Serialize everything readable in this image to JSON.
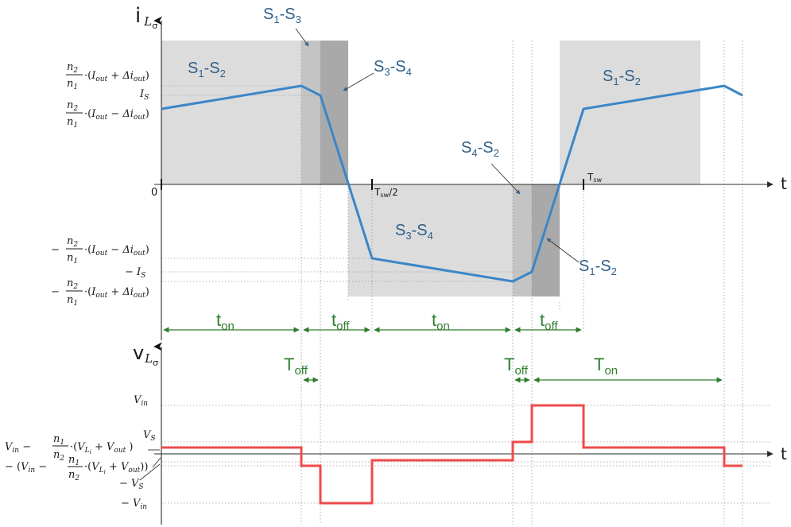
{
  "axes": {
    "top_y_label": "i",
    "top_y_label_sub": "L",
    "top_y_label_subsub": "σ",
    "bottom_y_label": "v",
    "bottom_y_label_sub": "L",
    "bottom_y_label_subsub": "σ",
    "t_label_top": "t",
    "t_label_bottom": "t",
    "zero_label": "0",
    "tsw_half_label": "T",
    "tsw_half_sub": "sw",
    "tsw_half_suffix": "/2",
    "tsw_label": "T",
    "tsw_sub": "sw"
  },
  "switch_labels": {
    "s1s2_left": {
      "a": "S",
      "a_sub": "1",
      "sep": "-",
      "b": "S",
      "b_sub": "2"
    },
    "s1s3": {
      "a": "S",
      "a_sub": "1",
      "sep": "-",
      "b": "S",
      "b_sub": "3"
    },
    "s3s4_upper": {
      "a": "S",
      "a_sub": "3",
      "sep": "-",
      "b": "S",
      "b_sub": "4"
    },
    "s3s4_lower": {
      "a": "S",
      "a_sub": "3",
      "sep": "-",
      "b": "S",
      "b_sub": "4"
    },
    "s4s2": {
      "a": "S",
      "a_sub": "4",
      "sep": "-",
      "b": "S",
      "b_sub": "2"
    },
    "s1s2_lower": {
      "a": "S",
      "a_sub": "1",
      "sep": "-",
      "b": "S",
      "b_sub": "2"
    },
    "s1s2_right": {
      "a": "S",
      "a_sub": "1",
      "sep": "-",
      "b": "S",
      "b_sub": "2"
    }
  },
  "current_levels": {
    "upper_plus": {
      "num": "n",
      "num_sub": "2",
      "den": "n",
      "den_sub": "1",
      "dot": "·(",
      "i": "I",
      "i_sub": "out",
      "op": " + ",
      "d": "Δi",
      "d_sub": "out",
      "close": ")"
    },
    "is_pos": {
      "main": "I",
      "sub": "S"
    },
    "upper_minus": {
      "num": "n",
      "num_sub": "2",
      "den": "n",
      "den_sub": "1",
      "dot": "·(",
      "i": "I",
      "i_sub": "out",
      "op": " − ",
      "d": "Δi",
      "d_sub": "out",
      "close": ")"
    },
    "lower_minus": {
      "prefix": "−",
      "num": "n",
      "num_sub": "2",
      "den": "n",
      "den_sub": "1",
      "dot": "·(",
      "i": "I",
      "i_sub": "out",
      "op": " − ",
      "d": "Δi",
      "d_sub": "out",
      "close": ")"
    },
    "is_neg": {
      "prefix": "− ",
      "main": "I",
      "sub": "S"
    },
    "lower_plus": {
      "prefix": "−",
      "num": "n",
      "num_sub": "2",
      "den": "n",
      "den_sub": "1",
      "dot": "·(",
      "i": "I",
      "i_sub": "out",
      "op": " + ",
      "d": "Δi",
      "d_sub": "out",
      "close": ")"
    }
  },
  "voltage_levels": {
    "vin": {
      "main": "V",
      "sub": "in"
    },
    "vs": {
      "main": "V",
      "sub": "S"
    },
    "mid_pos": {
      "a": "V",
      "a_sub": "in",
      "op": " − ",
      "num": "n",
      "num_sub": "1",
      "den": "n",
      "den_sub": "2",
      "dot": "·(",
      "b": "V",
      "b_sub": "L",
      "b_subsub": "i",
      "plus": " + ",
      "c": "V",
      "c_sub": "out",
      "close": " )"
    },
    "mid_neg": {
      "open": "− (",
      "a": "V",
      "a_sub": "in",
      "op": " −",
      "num": "n",
      "num_sub": "1",
      "den": "n",
      "den_sub": "2",
      "dot": "·(",
      "b": "V",
      "b_sub": "L",
      "b_subsub": "i",
      "plus": " + ",
      "c": "V",
      "c_sub": "out",
      "close": "))"
    },
    "neg_vs": {
      "prefix": "− ",
      "main": "V",
      "sub": "S"
    },
    "neg_vin": {
      "prefix": "− ",
      "main": "V",
      "sub": "in"
    }
  },
  "intervals": {
    "t_on_1": {
      "main": "t",
      "sub": "on"
    },
    "t_off_1": {
      "main": "t",
      "sub": "off"
    },
    "t_on_2": {
      "main": "t",
      "sub": "on"
    },
    "t_off_2": {
      "main": "t",
      "sub": "off"
    },
    "T_off_1": {
      "main": "T",
      "sub": "off"
    },
    "T_off_2": {
      "main": "T",
      "sub": "off"
    },
    "T_on": {
      "main": "T",
      "sub": "on"
    }
  },
  "colors": {
    "current_trace": "#3b86c8",
    "voltage_trace": "#ef4b4b",
    "interval_arrows": "#2e7d2e",
    "switch_label": "#2e5f8a",
    "light_region": "#dcdcdc",
    "dark_region": "#a9a9a9"
  }
}
